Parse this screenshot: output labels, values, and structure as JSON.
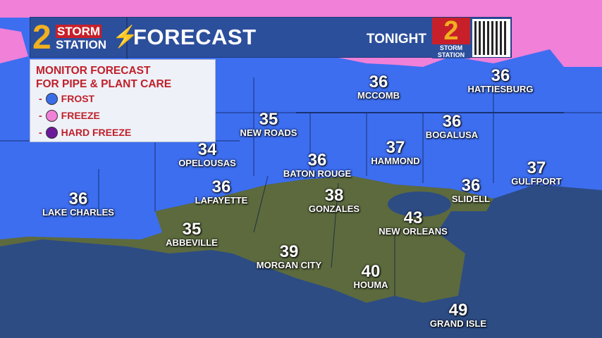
{
  "header": {
    "logo_number": "2",
    "logo_line1": "STORM",
    "logo_line2": "STATION",
    "title": "FORECAST",
    "period": "TONIGHT",
    "badge_number": "2",
    "badge_line1": "STORM",
    "badge_line2": "STATION",
    "qr_icon": "qr-code"
  },
  "legend": {
    "heading_line1": "MONITOR FORECAST",
    "heading_line2": "FOR PIPE & PLANT CARE",
    "items": [
      {
        "label": "FROST",
        "color": "#3a6ee8"
      },
      {
        "label": "FREEZE",
        "color": "#f080d8"
      },
      {
        "label": "HARD FREEZE",
        "color": "#6a1a9a"
      }
    ]
  },
  "colors": {
    "frost": "#3a6ee8",
    "freeze": "#f080d8",
    "land": "#5a6a3a",
    "water": "#2a4a80"
  },
  "cities": [
    {
      "temp": "36",
      "name": "MCCOMB"
    },
    {
      "temp": "36",
      "name": "HATTIESBURG"
    },
    {
      "temp": "35",
      "name": "NEW ROADS"
    },
    {
      "temp": "36",
      "name": "BOGALUSA"
    },
    {
      "temp": "34",
      "name": "OPELOUSAS"
    },
    {
      "temp": "36",
      "name": "BATON ROUGE"
    },
    {
      "temp": "37",
      "name": "HAMMOND"
    },
    {
      "temp": "37",
      "name": "GULFPORT"
    },
    {
      "temp": "36",
      "name": "LAKE CHARLES"
    },
    {
      "temp": "36",
      "name": "LAFAYETTE"
    },
    {
      "temp": "38",
      "name": "GONZALES"
    },
    {
      "temp": "36",
      "name": "SLIDELL"
    },
    {
      "temp": "43",
      "name": "NEW ORLEANS"
    },
    {
      "temp": "35",
      "name": "ABBEVILLE"
    },
    {
      "temp": "39",
      "name": "MORGAN CITY"
    },
    {
      "temp": "40",
      "name": "HOUMA"
    },
    {
      "temp": "49",
      "name": "GRAND ISLE"
    }
  ]
}
